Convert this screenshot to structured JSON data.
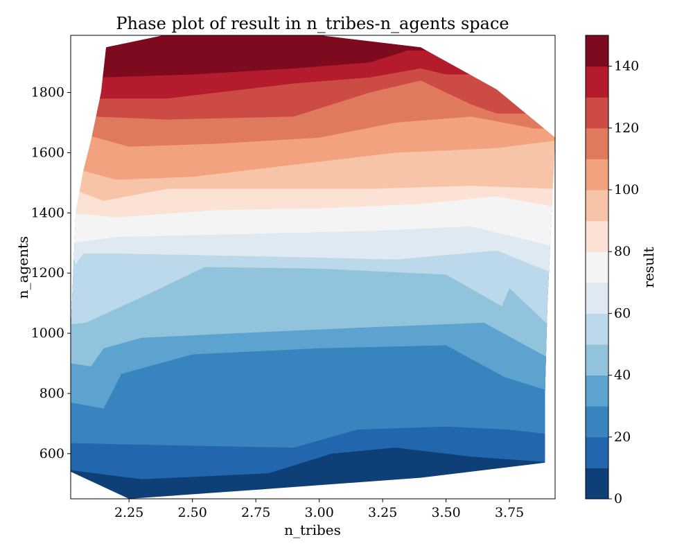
{
  "chart_data": {
    "type": "contour",
    "title": "Phase plot of result in n_tribes-n_agents space",
    "xlabel": "n_tribes",
    "ylabel": "n_agents",
    "xlim": [
      2.02,
      3.93
    ],
    "ylim": [
      450,
      1990
    ],
    "x_ticks": [
      2.25,
      2.5,
      2.75,
      3.0,
      3.25,
      3.5,
      3.75
    ],
    "x_tick_labels": [
      "2.25",
      "2.50",
      "2.75",
      "3.00",
      "3.25",
      "3.50",
      "3.75"
    ],
    "y_ticks": [
      600,
      800,
      1000,
      1200,
      1400,
      1600,
      1800
    ],
    "y_tick_labels": [
      "600",
      "800",
      "1000",
      "1200",
      "1400",
      "1600",
      "1800"
    ],
    "colorbar": {
      "label": "result",
      "levels": [
        0,
        10,
        20,
        30,
        40,
        50,
        60,
        70,
        80,
        90,
        100,
        110,
        120,
        130,
        140,
        150
      ],
      "tick_values": [
        0,
        20,
        40,
        60,
        80,
        100,
        120,
        140
      ],
      "tick_labels": [
        "0",
        "20",
        "40",
        "60",
        "80",
        "100",
        "120",
        "140"
      ],
      "colors": [
        "#0f3f77",
        "#2266ae",
        "#3884bf",
        "#5da3cf",
        "#91c3dd",
        "#bbd9ea",
        "#dee9f1",
        "#f4f4f4",
        "#fbe2d4",
        "#f8c4a8",
        "#f2a27f",
        "#e07a5f",
        "#cd4b45",
        "#b41c2d",
        "#7e0a1f"
      ]
    },
    "region_bounds": {
      "left_x": [
        2.02,
        2.02,
        2.04,
        2.07,
        2.1,
        2.14,
        2.16
      ],
      "left_y": [
        540,
        1000,
        1400,
        1540,
        1640,
        1800,
        1950
      ],
      "top_x": [
        2.16,
        2.5,
        3.0,
        3.4,
        3.7,
        3.93
      ],
      "top_y": [
        1950,
        2010,
        1990,
        1950,
        1810,
        1650
      ],
      "right_x": [
        3.93,
        3.9,
        3.89,
        3.89
      ],
      "right_y": [
        1650,
        1100,
        800,
        570
      ],
      "bottom_x": [
        3.89,
        3.4,
        2.75,
        2.25,
        2.02
      ],
      "bottom_y": [
        570,
        520,
        480,
        450,
        540
      ]
    },
    "boundaries": [
      {
        "level": 10,
        "x": [
          2.02,
          2.3,
          2.8,
          3.05,
          3.3,
          3.6,
          3.9
        ],
        "y": [
          545,
          515,
          535,
          600,
          620,
          590,
          572
        ]
      },
      {
        "level": 20,
        "x": [
          2.02,
          2.4,
          2.9,
          3.15,
          3.5,
          3.75,
          3.9
        ],
        "y": [
          635,
          628,
          620,
          680,
          690,
          680,
          665
        ]
      },
      {
        "level": 30,
        "x": [
          2.02,
          2.15,
          2.22,
          2.5,
          3.0,
          3.5,
          3.73,
          3.9
        ],
        "y": [
          770,
          750,
          865,
          930,
          950,
          960,
          855,
          810
        ]
      },
      {
        "level": 40,
        "x": [
          2.02,
          2.1,
          2.15,
          2.3,
          2.8,
          3.2,
          3.65,
          3.9
        ],
        "y": [
          900,
          890,
          950,
          985,
          1005,
          1020,
          1035,
          920
        ]
      },
      {
        "level": 50,
        "x": [
          2.02,
          2.08,
          2.3,
          2.55,
          3.0,
          3.5,
          3.72,
          3.75,
          3.9
        ],
        "y": [
          1030,
          1035,
          1120,
          1220,
          1215,
          1195,
          1090,
          1150,
          1030
        ]
      },
      {
        "level": 60,
        "x": [
          2.02,
          2.04,
          2.07,
          2.2,
          2.8,
          3.3,
          3.7,
          3.92
        ],
        "y": [
          1280,
          1230,
          1265,
          1265,
          1255,
          1245,
          1275,
          1200
        ]
      },
      {
        "level": 70,
        "x": [
          2.02,
          2.2,
          2.7,
          3.2,
          3.6,
          3.92
        ],
        "y": [
          1300,
          1320,
          1330,
          1340,
          1355,
          1290
        ]
      },
      {
        "level": 80,
        "x": [
          2.02,
          2.2,
          2.6,
          3.0,
          3.4,
          3.7,
          3.93
        ],
        "y": [
          1400,
          1385,
          1410,
          1415,
          1430,
          1455,
          1420
        ]
      },
      {
        "level": 90,
        "x": [
          2.04,
          2.15,
          2.4,
          2.8,
          3.2,
          3.6,
          3.93
        ],
        "y": [
          1475,
          1440,
          1480,
          1480,
          1480,
          1490,
          1480
        ]
      },
      {
        "level": 100,
        "x": [
          2.07,
          2.2,
          2.5,
          2.9,
          3.3,
          3.7,
          3.93
        ],
        "y": [
          1540,
          1510,
          1520,
          1560,
          1600,
          1615,
          1640
        ]
      },
      {
        "level": 110,
        "x": [
          2.1,
          2.25,
          2.6,
          3.0,
          3.3,
          3.6,
          3.85
        ],
        "y": [
          1655,
          1620,
          1630,
          1650,
          1700,
          1720,
          1680
        ]
      },
      {
        "level": 120,
        "x": [
          2.11,
          2.4,
          2.9,
          3.2,
          3.4,
          3.6,
          3.7
        ],
        "y": [
          1720,
          1710,
          1720,
          1800,
          1840,
          1760,
          1730
        ]
      },
      {
        "level": 130,
        "x": [
          2.13,
          2.4,
          2.9,
          3.2,
          3.4,
          3.5
        ],
        "y": [
          1780,
          1780,
          1830,
          1850,
          1880,
          1860
        ]
      },
      {
        "level": 140,
        "x": [
          2.14,
          2.5,
          2.9,
          3.2,
          3.35
        ],
        "y": [
          1850,
          1860,
          1880,
          1900,
          1940
        ]
      },
      {
        "level": 150,
        "x": [
          2.16,
          2.4,
          2.8,
          3.0
        ],
        "y": [
          1925,
          1940,
          1960,
          1980
        ]
      }
    ]
  }
}
